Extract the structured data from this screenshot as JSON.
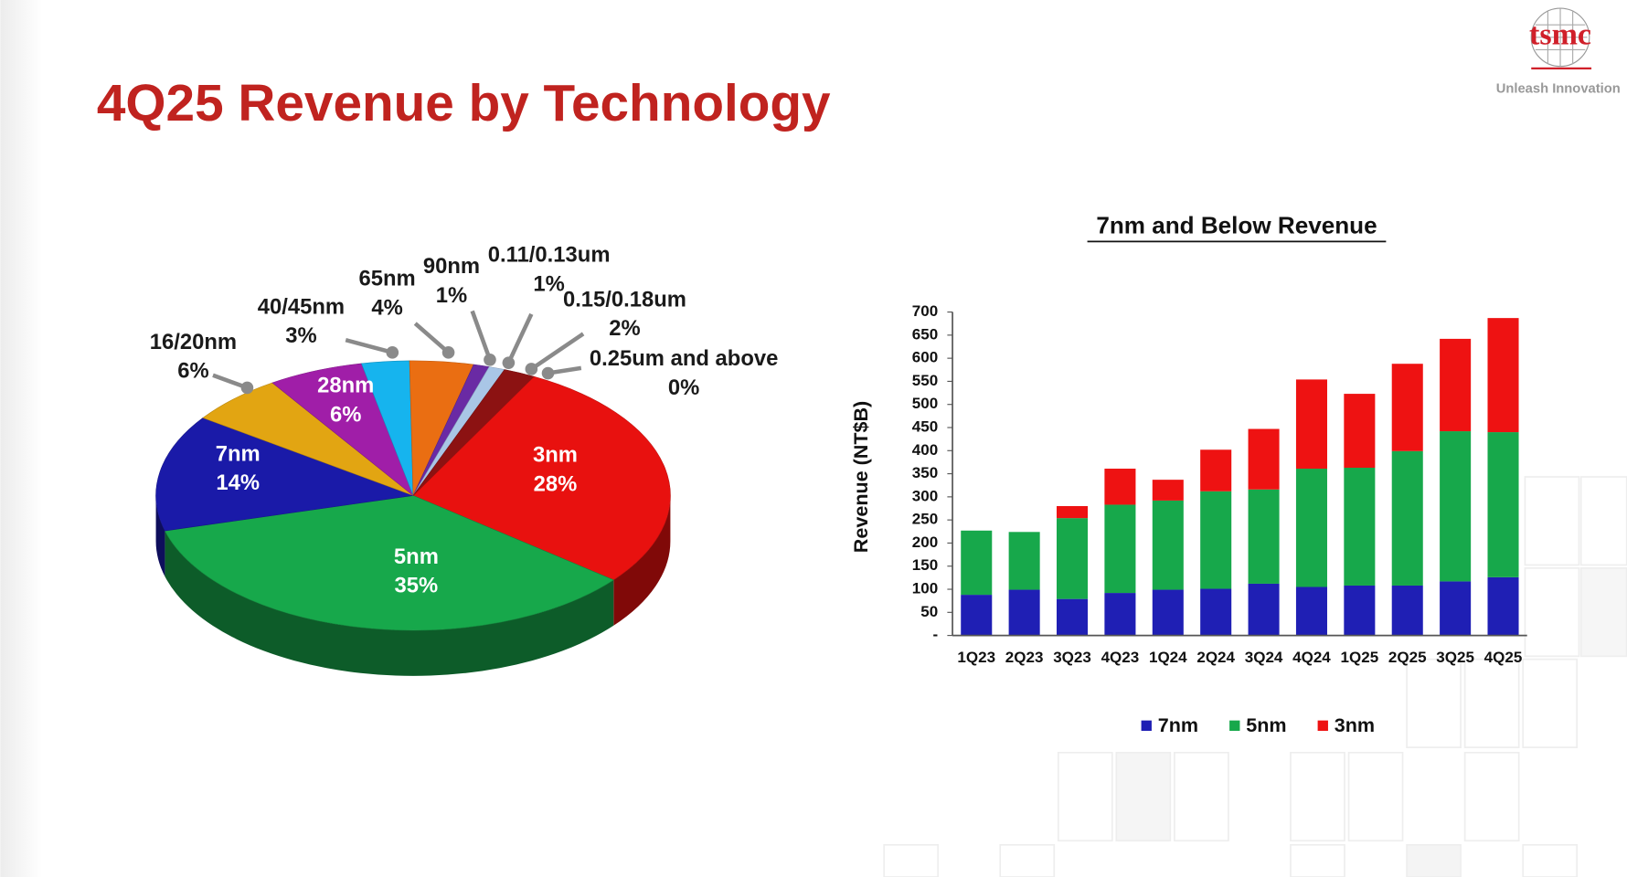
{
  "header": {
    "title": "4Q25 Revenue by Technology",
    "logo": "tsmc",
    "tagline": "Unleash Innovation"
  },
  "chart_data": [
    {
      "type": "pie",
      "categories": [
        "3nm",
        "5nm",
        "7nm",
        "16/20nm",
        "28nm",
        "40/45nm",
        "65nm",
        "90nm",
        "0.11/0.13um",
        "0.15/0.18um",
        "0.25um and above"
      ],
      "values": [
        28,
        35,
        14,
        6,
        6,
        3,
        4,
        1,
        1,
        2,
        0
      ],
      "value_labels": [
        "28%",
        "35%",
        "14%",
        "6%",
        "6%",
        "3%",
        "4%",
        "1%",
        "1%",
        "2%",
        "0%"
      ],
      "colors": [
        "#e8110f",
        "#17a84b",
        "#1a1aa8",
        "#e2a512",
        "#a01ea8",
        "#16b4ee",
        "#ea6e12",
        "#6a2aa4",
        "#a9c6e6",
        "#8c1212",
        "#c41818"
      ]
    },
    {
      "type": "bar",
      "stacked": true,
      "title": "7nm and Below Revenue",
      "y_label": "Revenue (NT$B)",
      "categories": [
        "1Q23",
        "2Q23",
        "3Q23",
        "4Q23",
        "1Q24",
        "2Q24",
        "3Q24",
        "4Q24",
        "1Q25",
        "2Q25",
        "3Q25",
        "4Q25"
      ],
      "series": [
        {
          "name": "7nm",
          "color": "#1f1fb4",
          "values": [
            88,
            99,
            79,
            92,
            99,
            101,
            112,
            105,
            108,
            108,
            117,
            126
          ]
        },
        {
          "name": "5nm",
          "color": "#17a84b",
          "values": [
            139,
            125,
            175,
            191,
            193,
            211,
            204,
            256,
            255,
            291,
            325,
            314
          ]
        },
        {
          "name": "3nm",
          "color": "#ee1212",
          "values": [
            0,
            0,
            26,
            78,
            45,
            90,
            131,
            193,
            160,
            189,
            200,
            247
          ]
        }
      ],
      "ylim": [
        0,
        700
      ],
      "yticks": [
        {
          "value": 0,
          "label": "-"
        },
        50,
        100,
        150,
        200,
        250,
        300,
        350,
        400,
        450,
        500,
        550,
        600,
        650,
        700
      ],
      "legend": "bottom"
    }
  ]
}
